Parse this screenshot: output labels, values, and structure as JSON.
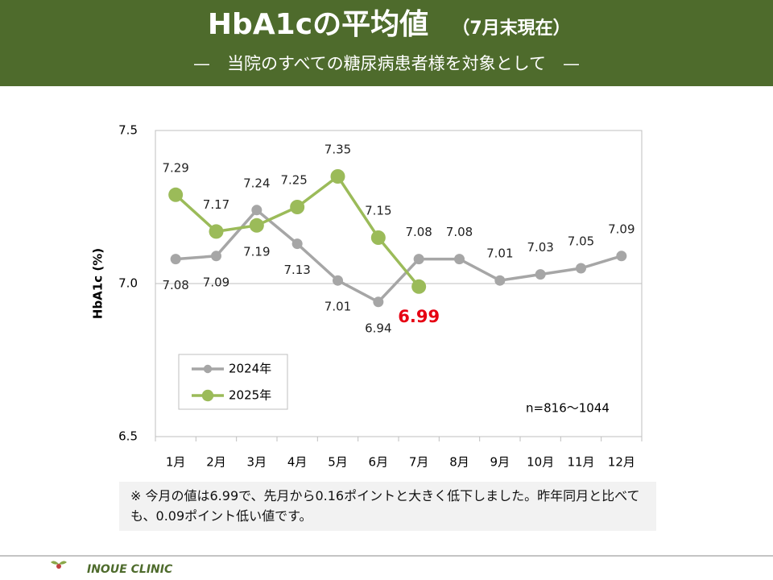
{
  "chart_data": {
    "type": "line",
    "title": "HbA1cの平均値",
    "title_note": "（7月末現在）",
    "subtitle": "—　当院のすべての糖尿病患者様を対象として　—",
    "y_label": "HbA1c (%)",
    "categories": [
      "1月",
      "2月",
      "3月",
      "4月",
      "5月",
      "6月",
      "7月",
      "8月",
      "9月",
      "10月",
      "11月",
      "12月"
    ],
    "series": [
      {
        "name": "2024年",
        "color": "#a6a6a6",
        "values": [
          7.08,
          7.09,
          7.24,
          7.13,
          7.01,
          6.94,
          7.08,
          7.08,
          7.01,
          7.03,
          7.05,
          7.09
        ]
      },
      {
        "name": "2025年",
        "color": "#9bbb59",
        "values": [
          7.29,
          7.17,
          7.19,
          7.25,
          7.35,
          7.15,
          6.99,
          null,
          null,
          null,
          null,
          null
        ]
      }
    ],
    "ylim": [
      6.5,
      7.5
    ],
    "yticks": [
      {
        "value": 6.5,
        "label": "6.5"
      },
      {
        "value": 7,
        "label": "7.0"
      },
      {
        "value": 7.5,
        "label": "7.5"
      }
    ],
    "grid": true,
    "annotation": "n=816～1044",
    "note": "※ 今月の値は6.99で、先月から0.16ポイントと大きく低下しました。昨年同月と比べても、0.09ポイント低い値です。",
    "footer": "INOUE CLINIC"
  }
}
